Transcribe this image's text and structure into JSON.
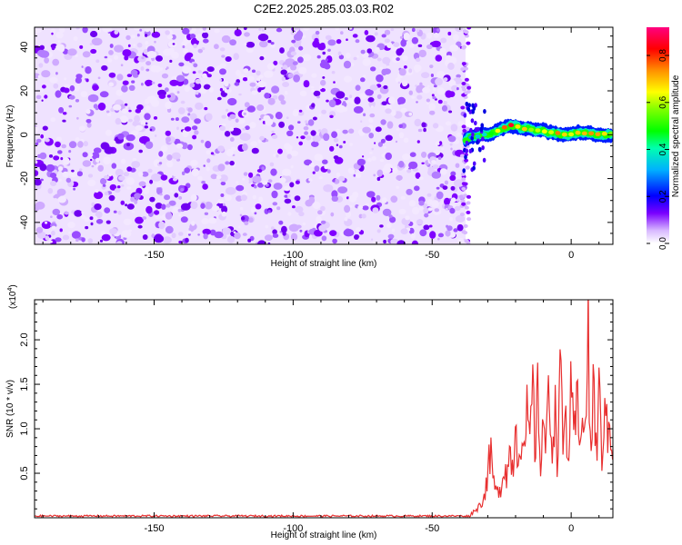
{
  "chart_data": [
    {
      "type": "heatmap",
      "title": "C2E2.2025.285.03.03.R02",
      "xlabel": "Height of straight line (km)",
      "ylabel": "Frequency (Hz)",
      "xlim": [
        -193,
        15
      ],
      "ylim": [
        -50,
        49
      ],
      "xticks": [
        -150,
        -100,
        -50,
        0
      ],
      "yticks": [
        -40,
        -20,
        0,
        20,
        40
      ],
      "xtick_labels": [
        "-150",
        "-100",
        "-50",
        "0"
      ],
      "ytick_labels": [
        "-40",
        "-20",
        "0",
        "20",
        "40"
      ],
      "noise_region": {
        "x_from": -193,
        "x_to": -38,
        "peak_amplitude": 0.1,
        "color": "#8000ff"
      },
      "signal_ridge": {
        "x": [
          -38,
          -35,
          -32,
          -30,
          -28,
          -26,
          -24,
          -22,
          -20,
          -18,
          -16,
          -14,
          -12,
          -10,
          -8,
          -6,
          -4,
          -2,
          0,
          2,
          4,
          6,
          8,
          10,
          12,
          15
        ],
        "frequency": [
          -2,
          -1,
          0,
          0,
          1,
          2,
          3,
          4,
          4,
          3,
          3,
          2,
          2,
          2,
          1,
          1,
          0,
          0,
          0,
          1,
          1,
          1,
          0,
          0,
          0,
          0
        ],
        "amplitude": [
          0.3,
          0.35,
          0.45,
          0.5,
          0.6,
          0.7,
          0.8,
          0.9,
          0.85,
          0.8,
          0.75,
          0.7,
          0.75,
          0.8,
          0.8,
          0.75,
          0.8,
          0.85,
          0.8,
          0.75,
          0.8,
          0.8,
          0.8,
          0.8,
          0.75,
          0.7
        ]
      },
      "colorbar": {
        "label": "Normalized spectral amplitude",
        "range": [
          0,
          0.92
        ],
        "ticks": [
          0.0,
          0.2,
          0.4,
          0.6,
          0.8
        ],
        "tick_labels": [
          "0.0",
          "0.2",
          "0.4",
          "0.6",
          "0.8"
        ]
      }
    },
    {
      "type": "line",
      "xlabel": "Height of straight line (km)",
      "ylabel": "SNR (10 * v/v)",
      "y_multiplier": "(x10",
      "y_multiplier_exp": "4",
      "y_multiplier_close": ")",
      "xlim": [
        -193,
        15
      ],
      "ylim": [
        0,
        2.45
      ],
      "xticks": [
        -150,
        -100,
        -50,
        0
      ],
      "yticks": [
        0.5,
        1.0,
        1.5,
        2.0
      ],
      "xtick_labels": [
        "-150",
        "-100",
        "-50",
        "0"
      ],
      "ytick_labels": [
        "0.5",
        "1.0",
        "1.5",
        "2.0"
      ],
      "line_color": "#e83030",
      "series": [
        {
          "x": [
            -193,
            -180,
            -160,
            -140,
            -120,
            -100,
            -80,
            -60,
            -45,
            -36,
            -33,
            -31,
            -30,
            -29,
            -28,
            -27,
            -26,
            -25,
            -24,
            -23,
            -22,
            -21,
            -20,
            -19,
            -18,
            -17,
            -16,
            -15,
            -14,
            -13,
            -12,
            -11,
            -10,
            -9,
            -8,
            -7,
            -6,
            -5,
            -4,
            -3,
            -2,
            -1,
            0,
            1,
            2,
            3,
            4,
            5,
            6,
            7,
            8,
            9,
            10,
            11,
            12,
            13,
            14,
            15
          ],
          "values": [
            0.02,
            0.02,
            0.02,
            0.02,
            0.02,
            0.02,
            0.02,
            0.02,
            0.02,
            0.05,
            0.15,
            0.3,
            0.6,
            0.8,
            0.5,
            0.3,
            0.35,
            0.45,
            0.7,
            0.55,
            0.9,
            0.6,
            1.25,
            0.8,
            1.15,
            0.7,
            1.3,
            0.85,
            1.7,
            0.9,
            1.5,
            0.75,
            1.35,
            0.8,
            1.7,
            0.95,
            1.45,
            0.8,
            1.9,
            0.9,
            1.3,
            0.75,
            1.6,
            0.85,
            1.55,
            0.8,
            1.8,
            0.9,
            2.45,
            0.7,
            1.75,
            0.8,
            1.65,
            0.6,
            1.8,
            0.9,
            1.3,
            0.95
          ]
        }
      ]
    }
  ]
}
